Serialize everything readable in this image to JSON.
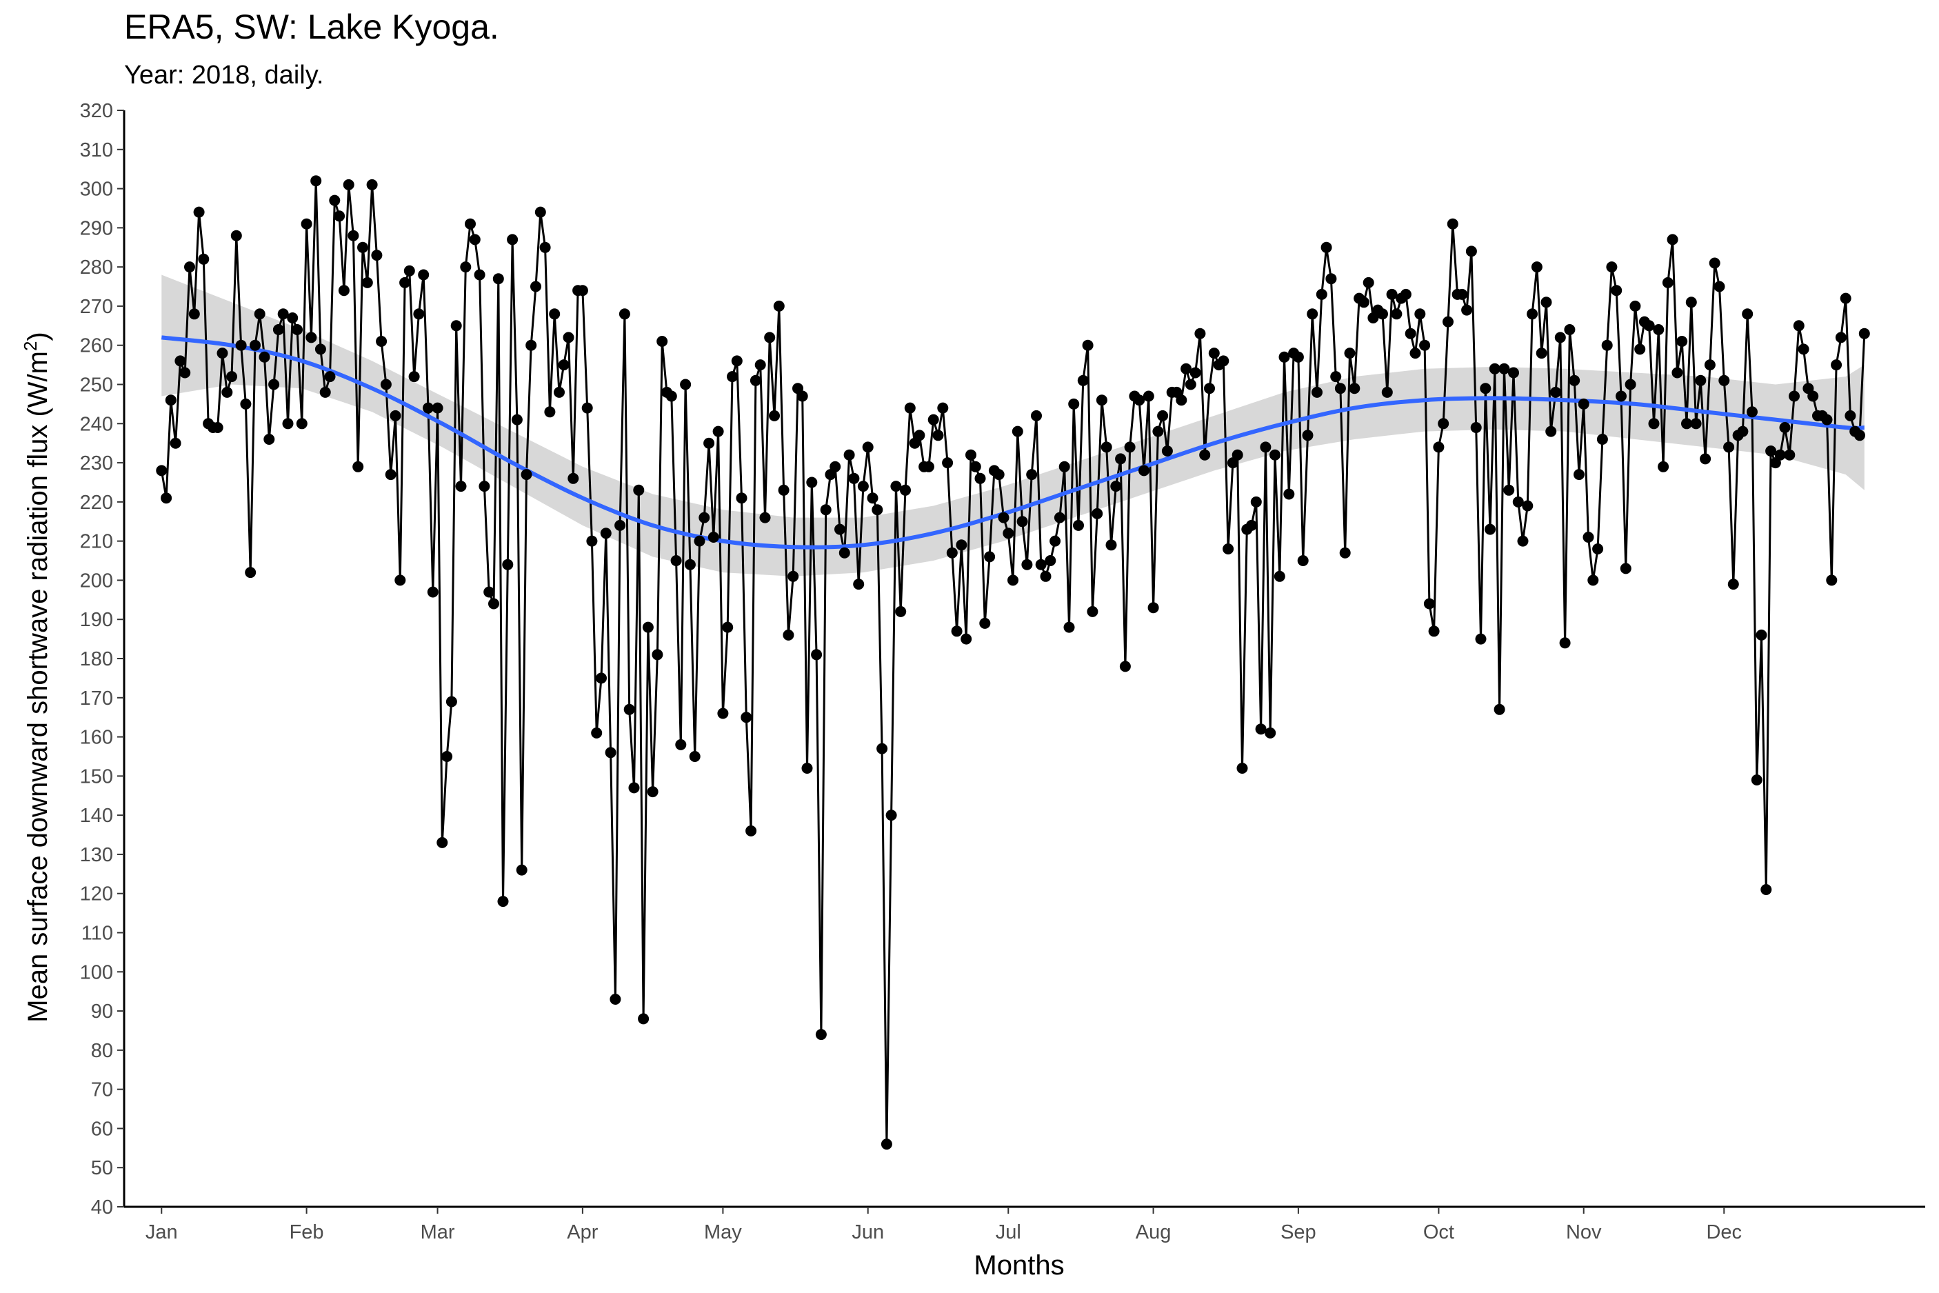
{
  "header": {
    "title": "ERA5, SW: Lake Kyoga.",
    "subtitle": "Year: 2018, daily."
  },
  "chart_data": {
    "type": "line",
    "title": "ERA5, SW: Lake Kyoga.",
    "subtitle": "Year: 2018, daily.",
    "xlabel": "Months",
    "ylabel_main": "Mean surface downward shortwave radiation flux (W/m",
    "ylabel_sup": "2",
    "ylabel_close": ")",
    "ylim": [
      40,
      320
    ],
    "yticks": [
      40,
      50,
      60,
      70,
      80,
      90,
      100,
      110,
      120,
      130,
      140,
      150,
      160,
      170,
      180,
      190,
      200,
      210,
      220,
      230,
      240,
      250,
      260,
      270,
      280,
      290,
      300,
      310,
      320
    ],
    "xlim_days": [
      -8,
      377
    ],
    "x_month_ticks": [
      {
        "label": "Jan",
        "day": 0
      },
      {
        "label": "Feb",
        "day": 31
      },
      {
        "label": "Mar",
        "day": 59
      },
      {
        "label": "Apr",
        "day": 90
      },
      {
        "label": "May",
        "day": 120
      },
      {
        "label": "Jun",
        "day": 151
      },
      {
        "label": "Jul",
        "day": 181
      },
      {
        "label": "Aug",
        "day": 212
      },
      {
        "label": "Sep",
        "day": 243
      },
      {
        "label": "Oct",
        "day": 273
      },
      {
        "label": "Nov",
        "day": 304
      },
      {
        "label": "Dec",
        "day": 334
      }
    ],
    "grid": false,
    "colors": {
      "line": "#000000",
      "points": "#000000",
      "smooth": "#3366FF",
      "ribbon": "#BEBEBE"
    },
    "series": [
      {
        "values": [
          228,
          221,
          246,
          235,
          256,
          253,
          280,
          268,
          294,
          282,
          240,
          239,
          239,
          258,
          248,
          252,
          288,
          260,
          245,
          202,
          260,
          268,
          257,
          236,
          250,
          264,
          268,
          240,
          267,
          264,
          240,
          291,
          262,
          302,
          259,
          248,
          252,
          297,
          293,
          274,
          301,
          288,
          229,
          285,
          276,
          301,
          283,
          261,
          250,
          227,
          242,
          200,
          276,
          279,
          252,
          268,
          278,
          244,
          197,
          244,
          133,
          155,
          169,
          265,
          224,
          280,
          291,
          287,
          278,
          224,
          197,
          194,
          277,
          118,
          204,
          287,
          241,
          126,
          227,
          260,
          275,
          294,
          285,
          243,
          268,
          248,
          255,
          262,
          226,
          274,
          274,
          244,
          210,
          161,
          175,
          212,
          156,
          93,
          214,
          268,
          167,
          147,
          223,
          88,
          188,
          146,
          181,
          261,
          248,
          247,
          205,
          158,
          250,
          204,
          155,
          210,
          216,
          235,
          211,
          238,
          166,
          188,
          252,
          256,
          221,
          165,
          136,
          251,
          255,
          216,
          262,
          242,
          270,
          223,
          186,
          201,
          249,
          247,
          152,
          225,
          181,
          84,
          218,
          227,
          229,
          213,
          207,
          232,
          226,
          199,
          224,
          234,
          221,
          218,
          157,
          56,
          140,
          224,
          192,
          223,
          244,
          235,
          237,
          229,
          229,
          241,
          237,
          244,
          230,
          207,
          187,
          209,
          185,
          232,
          229,
          226,
          189,
          206,
          228,
          227,
          216,
          212,
          200,
          238,
          215,
          204,
          227,
          242,
          204,
          201,
          205,
          210,
          216,
          229,
          188,
          245,
          214,
          251,
          260,
          192,
          217,
          246,
          234,
          209,
          224,
          231,
          178,
          234,
          247,
          246,
          228,
          247,
          193,
          238,
          242,
          233,
          248,
          248,
          246,
          254,
          250,
          253,
          263,
          232,
          249,
          258,
          255,
          256,
          208,
          230,
          232,
          152,
          213,
          214,
          220,
          162,
          234,
          161,
          232,
          201,
          257,
          222,
          258,
          257,
          205,
          237,
          268,
          248,
          273,
          285,
          277,
          252,
          249,
          207,
          258,
          249,
          272,
          271,
          276,
          267,
          269,
          268,
          248,
          273,
          268,
          272,
          273,
          263,
          258,
          268,
          260,
          194,
          187,
          234,
          240,
          266,
          291,
          273,
          273,
          269,
          284,
          239,
          185,
          249,
          213,
          254,
          167,
          254,
          223,
          253,
          220,
          210,
          219,
          268,
          280,
          258,
          271,
          238,
          248,
          262,
          184,
          264,
          251,
          227,
          245,
          211,
          200,
          208,
          236,
          260,
          280,
          274,
          247,
          203,
          250,
          270,
          259,
          266,
          265,
          240,
          264,
          229,
          276,
          287,
          253,
          261,
          240,
          271,
          240,
          251,
          231,
          255,
          281,
          275,
          251,
          234,
          199,
          237,
          238,
          268,
          243,
          149,
          186,
          121,
          233,
          230,
          232,
          239,
          232,
          247,
          265,
          259,
          249,
          247,
          242,
          242,
          241,
          200,
          255,
          262,
          272,
          242,
          238,
          237,
          263
        ]
      },
      {
        "name": "smooth",
        "days": [
          0,
          15,
          30,
          45,
          60,
          75,
          90,
          105,
          120,
          135,
          150,
          165,
          180,
          195,
          210,
          225,
          240,
          255,
          270,
          285,
          300,
          315,
          330,
          345,
          360,
          364
        ],
        "values": [
          262,
          260,
          256,
          249,
          240,
          230,
          221,
          214,
          210,
          208.5,
          209,
          212,
          217,
          223,
          229,
          235,
          240,
          244,
          246,
          246.5,
          246,
          245,
          243,
          241,
          239,
          239
        ],
        "lower": [
          247,
          250,
          249,
          243,
          234,
          224,
          214,
          206,
          202,
          201,
          202,
          205,
          210,
          216,
          222,
          228,
          233,
          236,
          238,
          238.5,
          238,
          236,
          234,
          232,
          227,
          223
        ],
        "upper": [
          278,
          271,
          264,
          256,
          247,
          238,
          229,
          222,
          218,
          216,
          216,
          219,
          224,
          230,
          236,
          242,
          248,
          252,
          254,
          254.5,
          254,
          253,
          252,
          250,
          252,
          255
        ]
      }
    ]
  }
}
